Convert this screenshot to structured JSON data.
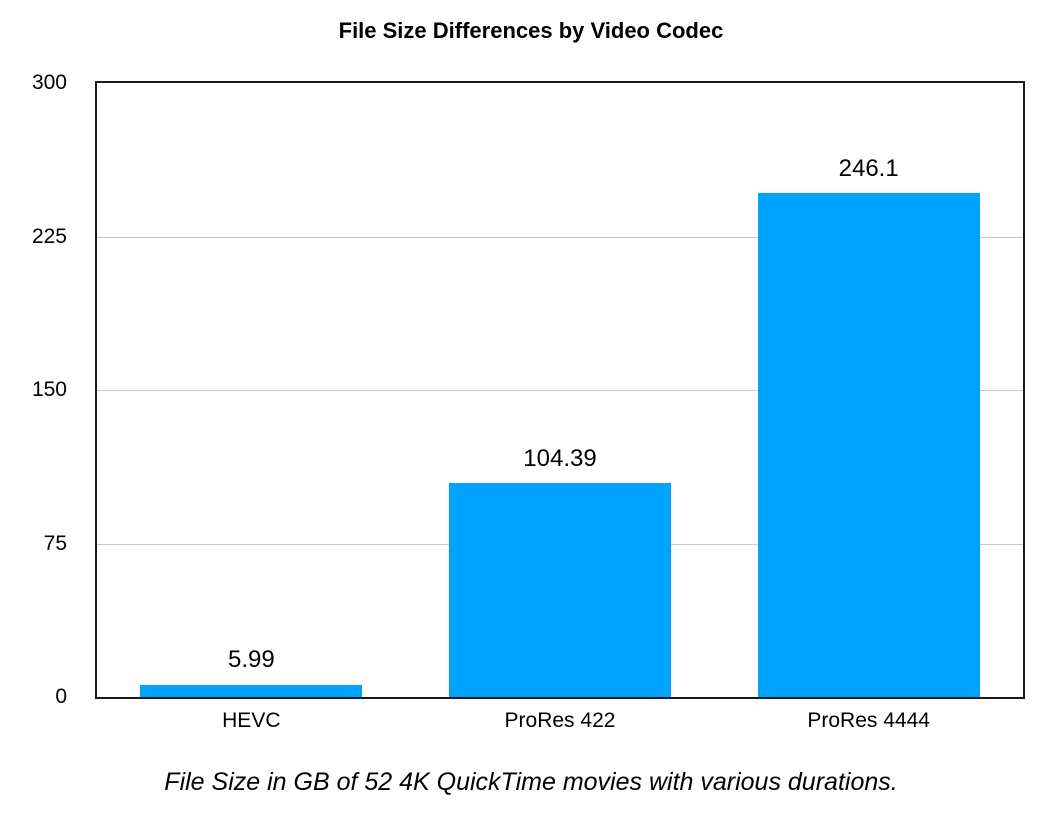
{
  "chart_data": {
    "type": "bar",
    "title": "File Size Differences by Video Codec",
    "categories": [
      "HEVC",
      "ProRes 422",
      "ProRes 4444"
    ],
    "values": [
      5.99,
      104.39,
      246.1
    ],
    "data_labels": [
      "5.99",
      "104.39",
      "246.1"
    ],
    "xlabel": "",
    "ylabel": "",
    "ylim": [
      0,
      300
    ],
    "yticks": [
      0,
      75,
      150,
      225,
      300
    ],
    "grid": true,
    "legend": "none",
    "annotation": "File Size in GB of 52 4K QuickTime movies with various durations."
  },
  "colors": {
    "bar": "#00A2FF",
    "plot_border": "#1a1a1a",
    "gridline": "#c9c9c9",
    "text": "#000000"
  }
}
